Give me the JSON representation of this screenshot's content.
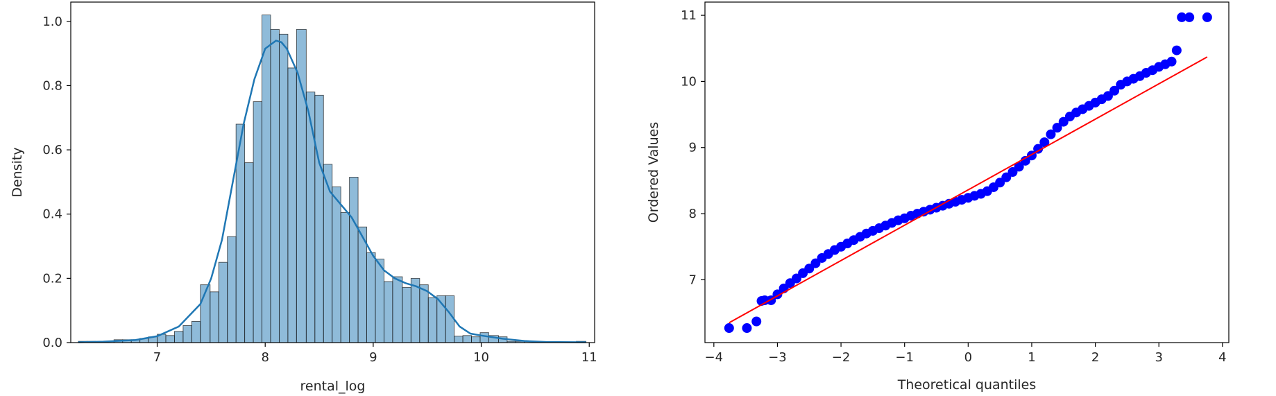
{
  "chart_data": [
    {
      "type": "histogram",
      "xlabel": "rental_log",
      "ylabel": "Density",
      "xlim": [
        6.2,
        11.05
      ],
      "ylim": [
        0,
        1.06
      ],
      "xticks": [
        7,
        8,
        9,
        10,
        11
      ],
      "yticks": [
        0.0,
        0.2,
        0.4,
        0.6,
        0.8,
        1.0
      ],
      "bar_color": "#1f77b4",
      "bins": [
        [
          6.27,
          6.35,
          0.004
        ],
        [
          6.35,
          6.43,
          0.004
        ],
        [
          6.43,
          6.51,
          0.0
        ],
        [
          6.51,
          6.6,
          0.004
        ],
        [
          6.6,
          6.68,
          0.009
        ],
        [
          6.68,
          6.76,
          0.009
        ],
        [
          6.76,
          6.84,
          0.009
        ],
        [
          6.84,
          6.92,
          0.013
        ],
        [
          6.92,
          7.0,
          0.018
        ],
        [
          7.0,
          7.08,
          0.026
        ],
        [
          7.08,
          7.16,
          0.022
        ],
        [
          7.16,
          7.24,
          0.035
        ],
        [
          7.24,
          7.32,
          0.053
        ],
        [
          7.32,
          7.4,
          0.066
        ],
        [
          7.4,
          7.49,
          0.18
        ],
        [
          7.49,
          7.57,
          0.158
        ],
        [
          7.57,
          7.65,
          0.25
        ],
        [
          7.65,
          7.73,
          0.33
        ],
        [
          7.73,
          7.81,
          0.68
        ],
        [
          7.81,
          7.89,
          0.56
        ],
        [
          7.89,
          7.97,
          0.75
        ],
        [
          7.97,
          8.05,
          1.02
        ],
        [
          8.05,
          8.13,
          0.975
        ],
        [
          8.13,
          8.21,
          0.96
        ],
        [
          8.21,
          8.29,
          0.855
        ],
        [
          8.29,
          8.38,
          0.975
        ],
        [
          8.38,
          8.46,
          0.78
        ],
        [
          8.46,
          8.54,
          0.77
        ],
        [
          8.54,
          8.62,
          0.555
        ],
        [
          8.62,
          8.7,
          0.485
        ],
        [
          8.7,
          8.78,
          0.405
        ],
        [
          8.78,
          8.86,
          0.515
        ],
        [
          8.86,
          8.94,
          0.36
        ],
        [
          8.94,
          9.02,
          0.28
        ],
        [
          9.02,
          9.1,
          0.26
        ],
        [
          9.1,
          9.18,
          0.19
        ],
        [
          9.18,
          9.27,
          0.205
        ],
        [
          9.27,
          9.35,
          0.172
        ],
        [
          9.35,
          9.43,
          0.2
        ],
        [
          9.43,
          9.51,
          0.18
        ],
        [
          9.51,
          9.59,
          0.14
        ],
        [
          9.59,
          9.67,
          0.146
        ],
        [
          9.67,
          9.75,
          0.146
        ],
        [
          9.75,
          9.83,
          0.02
        ],
        [
          9.83,
          9.91,
          0.022
        ],
        [
          9.91,
          9.99,
          0.018
        ],
        [
          9.99,
          10.07,
          0.031
        ],
        [
          10.07,
          10.16,
          0.022
        ],
        [
          10.16,
          10.24,
          0.018
        ],
        [
          10.24,
          10.32,
          0.004
        ],
        [
          10.32,
          10.4,
          0.004
        ],
        [
          10.4,
          10.48,
          0.004
        ],
        [
          10.48,
          10.56,
          0.0
        ],
        [
          10.56,
          10.64,
          0.0
        ],
        [
          10.64,
          10.72,
          0.0
        ],
        [
          10.72,
          10.8,
          0.0
        ],
        [
          10.8,
          10.88,
          0.0
        ],
        [
          10.88,
          10.97,
          0.004
        ]
      ],
      "kde": {
        "x": [
          6.27,
          6.5,
          6.8,
          7.0,
          7.2,
          7.4,
          7.5,
          7.6,
          7.7,
          7.8,
          7.9,
          8.0,
          8.1,
          8.15,
          8.2,
          8.3,
          8.4,
          8.5,
          8.6,
          8.7,
          8.8,
          8.9,
          9.0,
          9.1,
          9.2,
          9.3,
          9.4,
          9.5,
          9.6,
          9.7,
          9.8,
          9.9,
          10.0,
          10.2,
          10.4,
          10.6,
          10.97
        ],
        "y": [
          0.001,
          0.003,
          0.008,
          0.02,
          0.05,
          0.12,
          0.2,
          0.32,
          0.5,
          0.68,
          0.82,
          0.915,
          0.94,
          0.935,
          0.915,
          0.84,
          0.72,
          0.56,
          0.47,
          0.43,
          0.39,
          0.33,
          0.27,
          0.225,
          0.2,
          0.185,
          0.175,
          0.16,
          0.135,
          0.095,
          0.05,
          0.028,
          0.022,
          0.012,
          0.005,
          0.002,
          0.001
        ]
      }
    },
    {
      "type": "scatter",
      "xlabel": "Theoretical quantiles",
      "ylabel": "Ordered Values",
      "xlim": [
        -4.14,
        4.1
      ],
      "ylim": [
        6.05,
        11.2
      ],
      "xticks": [
        -4,
        -3,
        -2,
        -1,
        0,
        1,
        2,
        3,
        4
      ],
      "xtick_labels": [
        "−4",
        "−3",
        "−2",
        "−1",
        "0",
        "1",
        "2",
        "3",
        "4"
      ],
      "yticks": [
        7,
        8,
        9,
        10,
        11
      ],
      "point_color": "#0000ff",
      "line_color": "#ff0000",
      "reference_line": {
        "x": [
          -3.76,
          3.76
        ],
        "y": [
          6.35,
          10.37
        ]
      },
      "points": {
        "x": [
          -3.76,
          -3.48,
          -3.33,
          -3.25,
          -3.2,
          -3.1,
          -3.0,
          -2.9,
          -2.8,
          -2.7,
          -2.6,
          -2.5,
          -2.4,
          -2.3,
          -2.2,
          -2.1,
          -2.0,
          -1.9,
          -1.8,
          -1.7,
          -1.6,
          -1.5,
          -1.4,
          -1.3,
          -1.2,
          -1.1,
          -1.0,
          -0.9,
          -0.8,
          -0.7,
          -0.6,
          -0.5,
          -0.4,
          -0.3,
          -0.2,
          -0.1,
          0.0,
          0.1,
          0.2,
          0.3,
          0.4,
          0.5,
          0.6,
          0.7,
          0.8,
          0.9,
          1.0,
          1.1,
          1.2,
          1.3,
          1.4,
          1.5,
          1.6,
          1.7,
          1.8,
          1.9,
          2.0,
          2.1,
          2.2,
          2.3,
          2.4,
          2.5,
          2.6,
          2.7,
          2.8,
          2.9,
          3.0,
          3.1,
          3.2,
          3.28,
          3.36,
          3.48,
          3.76
        ],
        "y": [
          6.27,
          6.27,
          6.37,
          6.68,
          6.69,
          6.69,
          6.78,
          6.87,
          6.95,
          7.02,
          7.1,
          7.17,
          7.25,
          7.33,
          7.39,
          7.45,
          7.5,
          7.55,
          7.6,
          7.65,
          7.7,
          7.74,
          7.78,
          7.82,
          7.86,
          7.9,
          7.93,
          7.97,
          8.0,
          8.03,
          8.06,
          8.09,
          8.12,
          8.15,
          8.18,
          8.21,
          8.24,
          8.27,
          8.3,
          8.34,
          8.4,
          8.47,
          8.55,
          8.63,
          8.71,
          8.8,
          8.88,
          8.98,
          9.08,
          9.2,
          9.3,
          9.39,
          9.47,
          9.53,
          9.58,
          9.63,
          9.68,
          9.73,
          9.78,
          9.86,
          9.95,
          10.0,
          10.04,
          10.08,
          10.13,
          10.17,
          10.22,
          10.26,
          10.3,
          10.47,
          10.97,
          10.97,
          10.97
        ]
      }
    }
  ]
}
